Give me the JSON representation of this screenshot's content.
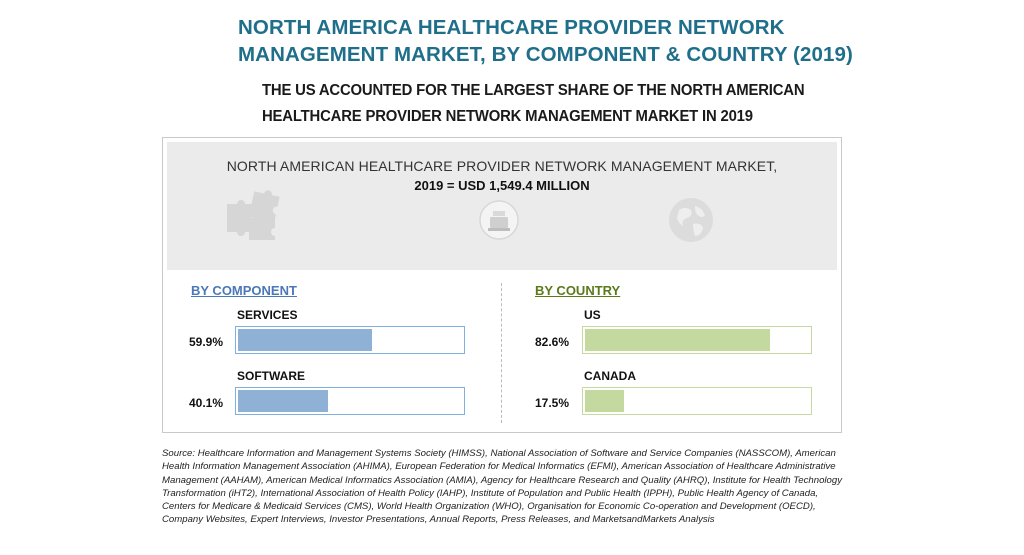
{
  "header": {
    "title_line1": "NORTH AMERICA HEALTHCARE PROVIDER NETWORK",
    "title_line2": "MANAGEMENT MARKET, BY COMPONENT & COUNTRY (2019)",
    "subtitle_line1": "THE US ACCOUNTED FOR THE LARGEST SHARE OF THE NORTH AMERICAN",
    "subtitle_line2": "HEALTHCARE PROVIDER NETWORK MANAGEMENT MARKET IN 2019"
  },
  "banner": {
    "line1": "NORTH AMERICAN HEALTHCARE PROVIDER NETWORK MANAGEMENT MARKET,",
    "line2": "2019 = USD  1,549.4 MILLION",
    "icons": [
      "puzzle-icon",
      "cash-register-icon",
      "globe-icon"
    ]
  },
  "colors": {
    "title": "#1f6f8b",
    "component_bar": "#8fb1d6",
    "country_bar": "#c4d9a0"
  },
  "chart_data": [
    {
      "type": "bar",
      "title": "BY COMPONENT",
      "categories": [
        "SERVICES",
        "SOFTWARE"
      ],
      "values": [
        59.9,
        40.1
      ],
      "value_labels": [
        "59.9%",
        "40.1%"
      ],
      "ylim": [
        0,
        100
      ]
    },
    {
      "type": "bar",
      "title": "BY COUNTRY",
      "categories": [
        "US",
        "CANADA"
      ],
      "values": [
        82.6,
        17.5
      ],
      "value_labels": [
        "82.6%",
        "17.5%"
      ],
      "ylim": [
        0,
        100
      ]
    }
  ],
  "source": "Source: Healthcare Information and Management Systems Society (HIMSS), National Association of Software and Service Companies (NASSCOM), American Health Information Management Association (AHIMA), European Federation for Medical Informatics (EFMI), American Association of Healthcare Administrative Management (AAHAM), American Medical Informatics Association (AMIA), Agency for Healthcare Research and Quality (AHRQ), Institute for Health Technology Transformation (iHT2), International Association of Health Policy (IAHP), Institute of Population and Public Health (IPPH), Public Health Agency of Canada, Centers for Medicare & Medicaid Services (CMS), World Health Organization (WHO), Organisation for Economic Co-operation and Development (OECD), Company Websites, Expert Interviews, Investor Presentations, Annual Reports, Press Releases, and MarketsandMarkets Analysis"
}
